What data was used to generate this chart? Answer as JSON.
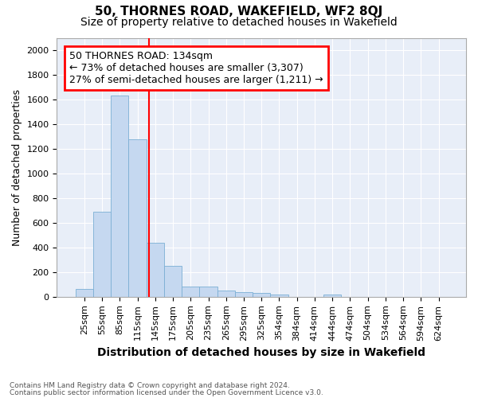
{
  "title1": "50, THORNES ROAD, WAKEFIELD, WF2 8QJ",
  "title2": "Size of property relative to detached houses in Wakefield",
  "xlabel": "Distribution of detached houses by size in Wakefield",
  "ylabel": "Number of detached properties",
  "categories": [
    "25sqm",
    "55sqm",
    "85sqm",
    "115sqm",
    "145sqm",
    "175sqm",
    "205sqm",
    "235sqm",
    "265sqm",
    "295sqm",
    "325sqm",
    "354sqm",
    "384sqm",
    "414sqm",
    "444sqm",
    "474sqm",
    "504sqm",
    "534sqm",
    "564sqm",
    "594sqm",
    "624sqm"
  ],
  "values": [
    65,
    690,
    1630,
    1280,
    435,
    250,
    85,
    85,
    50,
    40,
    30,
    20,
    0,
    0,
    20,
    0,
    0,
    0,
    0,
    0,
    0
  ],
  "bar_color": "#c5d8f0",
  "bar_edge_color": "#7bafd4",
  "vline_color": "red",
  "vline_pos": 3.63,
  "annotation_text": "50 THORNES ROAD: 134sqm\n← 73% of detached houses are smaller (3,307)\n27% of semi-detached houses are larger (1,211) →",
  "annotation_box_color": "white",
  "annotation_box_edge": "red",
  "ylim": [
    0,
    2100
  ],
  "yticks": [
    0,
    200,
    400,
    600,
    800,
    1000,
    1200,
    1400,
    1600,
    1800,
    2000
  ],
  "footer1": "Contains HM Land Registry data © Crown copyright and database right 2024.",
  "footer2": "Contains public sector information licensed under the Open Government Licence v3.0.",
  "fig_bg_color": "#ffffff",
  "plot_bg_color": "#e8eef8",
  "grid_color": "#ffffff",
  "title1_fontsize": 11,
  "title2_fontsize": 10,
  "xlabel_fontsize": 10,
  "ylabel_fontsize": 9,
  "tick_fontsize": 8,
  "annot_fontsize": 9
}
